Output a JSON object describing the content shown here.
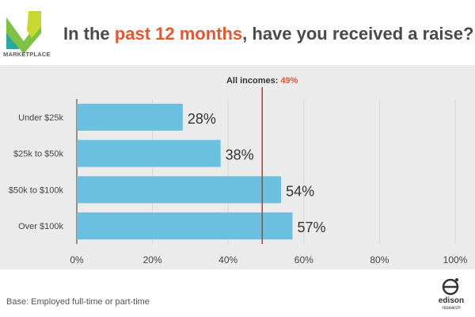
{
  "header": {
    "title_pre": "In the ",
    "title_highlight": "past 12 months",
    "title_post": ", have you received a raise?",
    "logo_text": "MARKETPLACE"
  },
  "footer": {
    "base_note": "Base: Employed full-time or part-time",
    "brand_text_1": "edison",
    "brand_text_2": "research"
  },
  "colors": {
    "bar": "#6bbfdf",
    "reference_line": "#c0392b",
    "highlight": "#e8562f"
  },
  "chart_data": {
    "type": "bar",
    "orientation": "horizontal",
    "categories": [
      "Under $25k",
      "$25k to $50k",
      "$50k to $100k",
      "Over $100k"
    ],
    "values": [
      28,
      38,
      54,
      57
    ],
    "value_labels": [
      "28%",
      "38%",
      "54%",
      "57%"
    ],
    "xlim": [
      0,
      100
    ],
    "x_ticks": [
      "0%",
      "20%",
      "40%",
      "60%",
      "80%",
      "100%"
    ],
    "reference": {
      "label": "All incomes: ",
      "value_label": "49%",
      "value": 49
    },
    "grid": true
  }
}
